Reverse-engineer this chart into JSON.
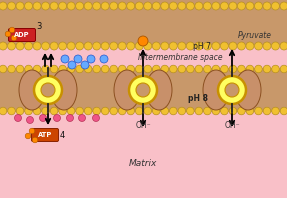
{
  "fig_width": 2.87,
  "fig_height": 1.98,
  "dpi": 100,
  "bg_pink": "#F9C0C8",
  "bg_membrane": "#C8986A",
  "lipid_head_color": "#F0C030",
  "lipid_head_edge": "#B89020",
  "matrix_label": "Matrix",
  "intermembrane_label": "Intermembrane space",
  "adp_label": "ADP",
  "atp_label": "ATP",
  "ph7_label": "pH 7",
  "ph8_label": "pH 8",
  "oh_label": "OH⁻",
  "pyruvate_label": "Pyruvate",
  "number_3": "3",
  "number_4": "4",
  "protein_fill": "#C8906A",
  "protein_edge": "#8B5020",
  "ring_fill": "#FFFF60",
  "ring_edge": "#C89000",
  "arrow_color": "#111111",
  "adp_bg": "#CC2222",
  "adp_text": "white",
  "atp_bg": "#CC4400",
  "atp_text": "white",
  "dot_blue": "#66AAFF",
  "dot_blue_edge": "#2255CC",
  "dot_pink": "#EE5588",
  "dot_pink_edge": "#AA2244",
  "dot_orange": "#FF8800",
  "dot_orange_edge": "#AA5500"
}
